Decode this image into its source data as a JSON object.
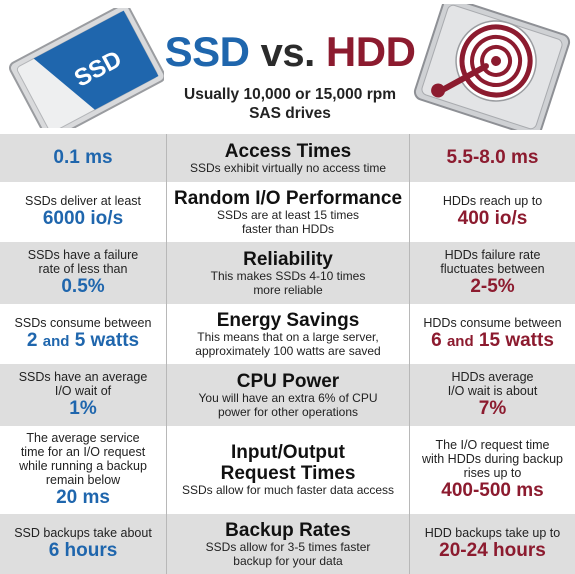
{
  "header": {
    "ssd_label": "SSD",
    "title_ssd": "SSD",
    "title_vs": "vs.",
    "title_hdd": "HDD",
    "subtitle_line1": "Usually 10,000 or 15,000 rpm",
    "subtitle_line2": "SAS drives"
  },
  "colors": {
    "ssd_blue": "#1f66ad",
    "hdd_red": "#8c1b2f",
    "row_shade": "#dedede"
  },
  "rows": [
    {
      "title": "Access Times",
      "desc": [
        "SSDs exhibit virtually no access time"
      ],
      "ssd_text": [],
      "ssd_value": "0.1 ms",
      "hdd_text": [],
      "hdd_value": "5.5-8.0 ms"
    },
    {
      "title": "Random I/O Performance",
      "desc": [
        "SSDs are at least 15 times",
        "faster than HDDs"
      ],
      "ssd_text": [
        "SSDs deliver at least"
      ],
      "ssd_value": "6000 io/s",
      "hdd_text": [
        "HDDs reach up to"
      ],
      "hdd_value": "400 io/s"
    },
    {
      "title": "Reliability",
      "desc": [
        "This makes SSDs 4-10 times",
        "more reliable"
      ],
      "ssd_text": [
        "SSDs have a failure",
        "rate of less than"
      ],
      "ssd_value": "0.5%",
      "hdd_text": [
        "HDDs failure rate",
        "fluctuates between"
      ],
      "hdd_value": "2-5%"
    },
    {
      "title": "Energy Savings",
      "desc": [
        "This means that on a large server,",
        "approximately 100 watts are saved"
      ],
      "ssd_text": [
        "SSDs consume between"
      ],
      "ssd_value_parts": [
        "2",
        "and",
        "5 watts"
      ],
      "hdd_text": [
        "HDDs consume between"
      ],
      "hdd_value_parts": [
        "6",
        "and",
        "15 watts"
      ]
    },
    {
      "title": "CPU Power",
      "desc": [
        "You will have an extra 6% of CPU",
        "power for other operations"
      ],
      "ssd_text": [
        "SSDs have an average",
        "I/O wait of"
      ],
      "ssd_value": "1%",
      "hdd_text": [
        "HDDs average",
        "I/O wait is about"
      ],
      "hdd_value": "7%"
    },
    {
      "title_lines": [
        "Input/Output",
        "Request Times"
      ],
      "desc": [
        "SSDs allow for much faster data access"
      ],
      "ssd_text": [
        "The average service",
        "time for an I/O request",
        "while running a backup",
        "remain below"
      ],
      "ssd_value": "20 ms",
      "hdd_text": [
        "The I/O request time",
        "with HDDs during backup",
        "rises up to"
      ],
      "hdd_value": "400-500 ms"
    },
    {
      "title": "Backup Rates",
      "desc": [
        "SSDs allow for 3-5 times faster",
        "backup for your data"
      ],
      "ssd_text": [
        "SSD backups take about"
      ],
      "ssd_value": "6 hours",
      "hdd_text": [
        "HDD backups take up to"
      ],
      "hdd_value": "20-24 hours"
    }
  ]
}
